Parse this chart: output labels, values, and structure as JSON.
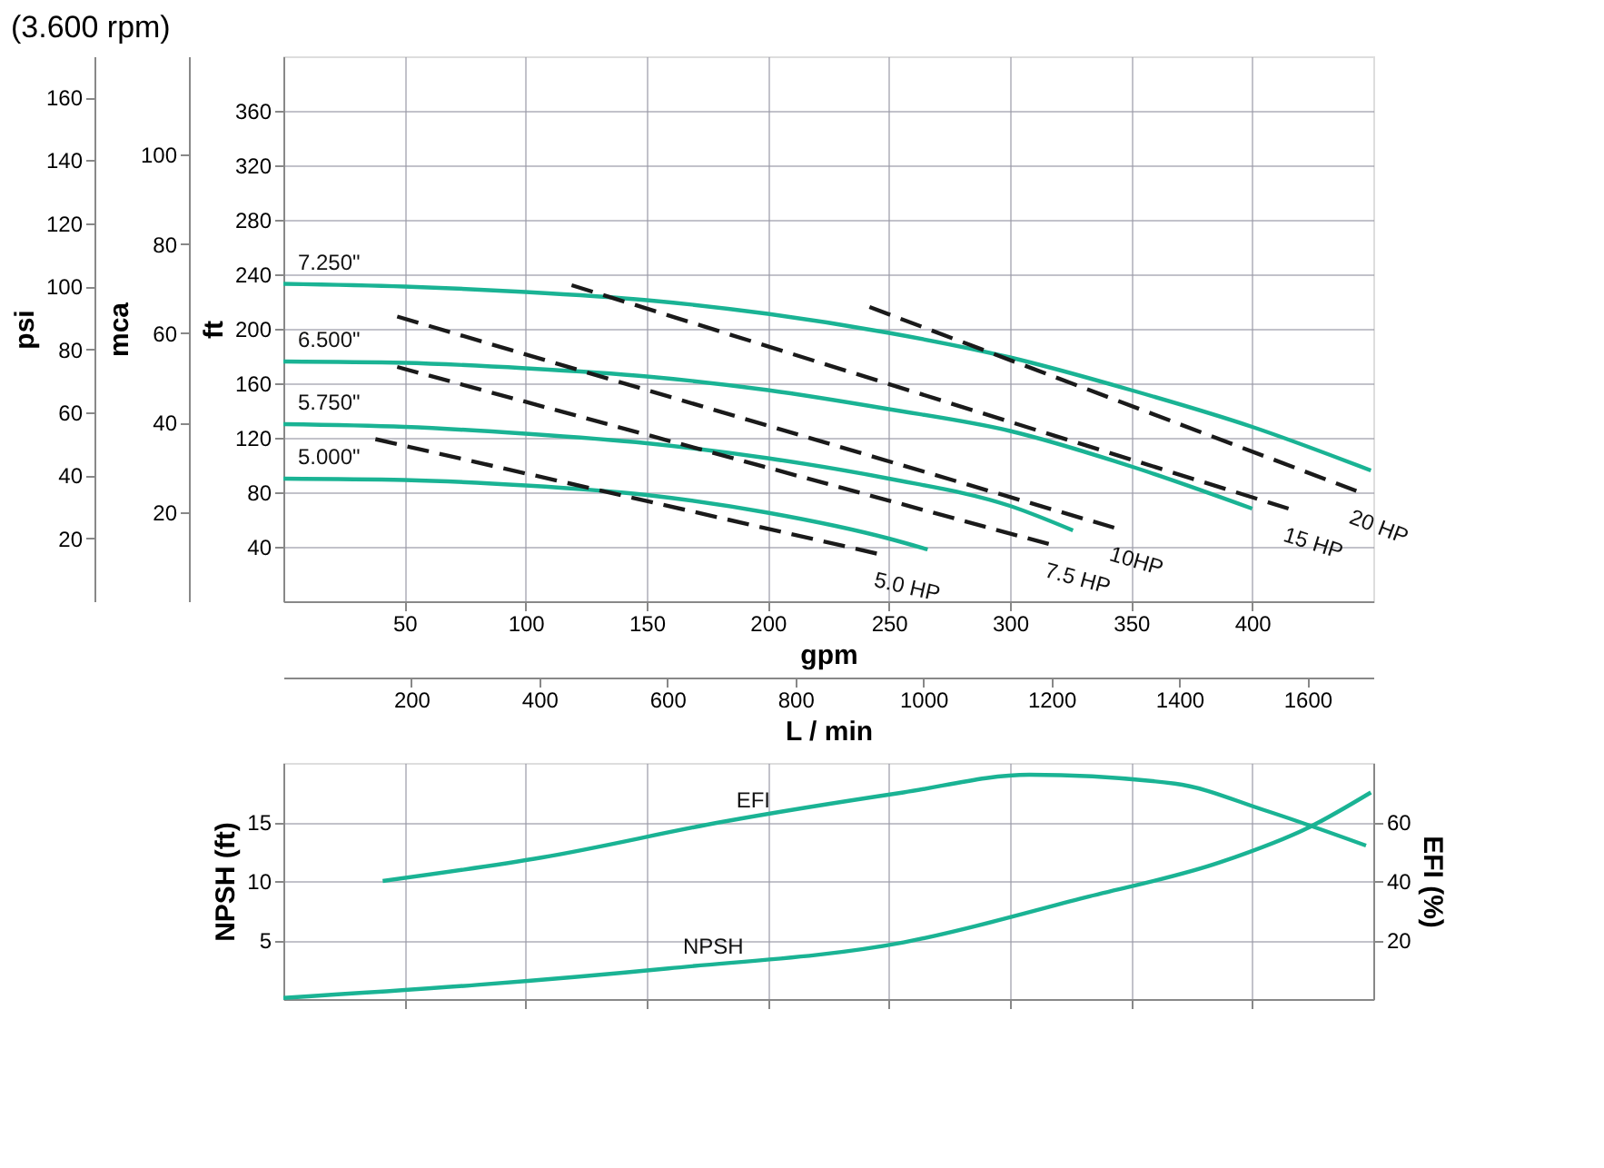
{
  "chart_data": [
    {
      "type": "line",
      "title": "(3.600 rpm)",
      "xlabel": "gpm",
      "ylabel": "ft",
      "y2label": "psi",
      "y3label": "mca",
      "x2label": "L / min",
      "xlim": [
        0,
        450
      ],
      "xticks": [
        50,
        100,
        150,
        200,
        250,
        300,
        350,
        400
      ],
      "x2lim": [
        0,
        1703
      ],
      "x2ticks": [
        200,
        400,
        600,
        800,
        1000,
        1200,
        1400,
        1600
      ],
      "ylim": [
        0,
        400
      ],
      "yticks": [
        40,
        80,
        120,
        160,
        200,
        240,
        280,
        320,
        360
      ],
      "y2lim": [
        0,
        173
      ],
      "y2ticks": [
        20,
        40,
        60,
        80,
        100,
        120,
        140,
        160
      ],
      "y3lim": [
        0,
        122
      ],
      "y3ticks": [
        20,
        40,
        60,
        80,
        100
      ],
      "grid": true,
      "legend": false,
      "series": [
        {
          "name": "7.250\"",
          "color": "#1ab394",
          "line_style": "solid",
          "x": [
            0,
            50,
            100,
            150,
            200,
            250,
            300,
            350,
            400,
            449
          ],
          "values": [
            233,
            231,
            227,
            221,
            211,
            197,
            179,
            155,
            128,
            96
          ]
        },
        {
          "name": "6.500\"",
          "color": "#1ab394",
          "line_style": "solid",
          "x": [
            0,
            50,
            100,
            150,
            200,
            250,
            300,
            350,
            400
          ],
          "values": [
            176,
            175,
            171,
            165,
            155,
            141,
            125,
            99,
            68
          ]
        },
        {
          "name": "5.750\"",
          "color": "#1ab394",
          "line_style": "solid",
          "x": [
            0,
            50,
            100,
            150,
            200,
            250,
            300,
            326
          ],
          "values": [
            130,
            128,
            123,
            116,
            105,
            90,
            70,
            52
          ]
        },
        {
          "name": "5.000\"",
          "color": "#1ab394",
          "line_style": "solid",
          "x": [
            0,
            50,
            100,
            150,
            200,
            250,
            266
          ],
          "values": [
            90,
            89,
            85,
            78,
            65,
            46,
            38
          ]
        },
        {
          "name": "5.0 HP",
          "color": "#1a1a1a",
          "line_style": "dashed",
          "x": [
            38,
            245
          ],
          "values": [
            119,
            35
          ]
        },
        {
          "name": "7.5 HP",
          "color": "#1a1a1a",
          "line_style": "dashed",
          "x": [
            47,
            316
          ],
          "values": [
            172,
            42
          ]
        },
        {
          "name": "10HP",
          "color": "#1a1a1a",
          "line_style": "dashed",
          "x": [
            47,
            343
          ],
          "values": [
            209,
            54
          ]
        },
        {
          "name": "15 HP",
          "color": "#1a1a1a",
          "line_style": "dashed",
          "x": [
            119,
            415
          ],
          "values": [
            232,
            68
          ]
        },
        {
          "name": "20 HP",
          "color": "#1a1a1a",
          "line_style": "dashed",
          "x": [
            242,
            443
          ],
          "values": [
            216,
            81
          ]
        }
      ]
    },
    {
      "type": "line",
      "ylabel": "NPSH (ft)",
      "y2label": "EFI (%)",
      "xlim": [
        0,
        450
      ],
      "xticks": [
        50,
        100,
        150,
        200,
        250,
        300,
        350,
        400
      ],
      "ylim": [
        0,
        20
      ],
      "yticks": [
        5,
        10,
        15
      ],
      "y2lim": [
        0,
        80
      ],
      "y2ticks": [
        20,
        40,
        60
      ],
      "grid": true,
      "legend": false,
      "tick_labels": "y",
      "series": [
        {
          "name": "NPSH",
          "color": "#1ab394",
          "line_style": "solid",
          "x": [
            0,
            80,
            159,
            256,
            331,
            387,
            424,
            449
          ],
          "values": [
            0.1,
            1.2,
            2.6,
            4.8,
            8.6,
            11.6,
            14.6,
            17.5
          ]
        },
        {
          "name": "EFI",
          "color": "#1ab394",
          "line_style": "solid",
          "axis": "y2",
          "x": [
            41,
            107,
            181,
            256,
            308,
            368,
            405,
            447
          ],
          "values": [
            40,
            48,
            60,
            70,
            76,
            73,
            64,
            52
          ]
        }
      ]
    }
  ]
}
